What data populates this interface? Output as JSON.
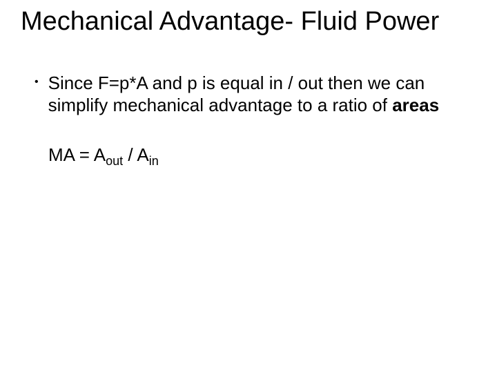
{
  "slide": {
    "background_color": "#ffffff",
    "text_color": "#000000",
    "font_family": "Arial",
    "title": {
      "text": "Mechanical Advantage- Fluid Power",
      "font_size": 38,
      "font_weight": "normal"
    },
    "bullet": {
      "marker": "•",
      "text_before_bold": "Since F=p*A and p is equal in / out then we can simplify mechanical advantage to a ratio of ",
      "bold_word": "areas",
      "font_size": 26
    },
    "formula": {
      "prefix": "MA = A",
      "sub1": "out",
      "mid": " / A",
      "sub2": "in",
      "font_size": 26,
      "sub_font_size": 18
    }
  }
}
